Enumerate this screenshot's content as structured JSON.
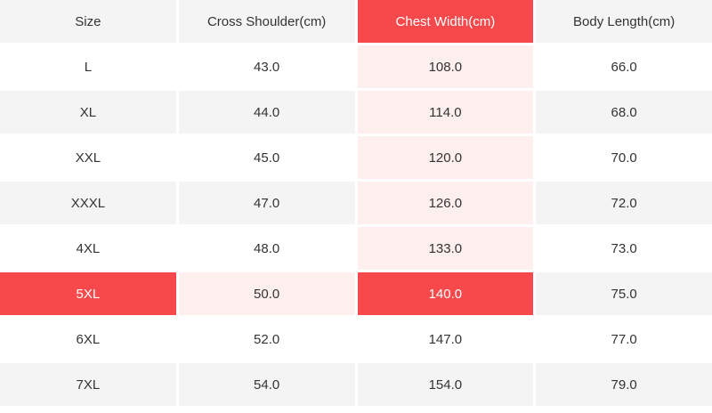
{
  "size_chart": {
    "columns": [
      "Size",
      "Cross Shoulder(cm)",
      "Chest Width(cm)",
      "Body Length(cm)"
    ],
    "highlighted_column": "Chest Width(cm)",
    "highlighted_row": "5XL",
    "rows": [
      [
        "L",
        "43.0",
        "108.0",
        "66.0"
      ],
      [
        "XL",
        "44.0",
        "114.0",
        "68.0"
      ],
      [
        "XXL",
        "45.0",
        "120.0",
        "70.0"
      ],
      [
        "XXXL",
        "47.0",
        "126.0",
        "72.0"
      ],
      [
        "4XL",
        "48.0",
        "133.0",
        "73.0"
      ],
      [
        "5XL",
        "50.0",
        "140.0",
        "75.0"
      ],
      [
        "6XL",
        "52.0",
        "147.0",
        "77.0"
      ],
      [
        "7XL",
        "54.0",
        "154.0",
        "79.0"
      ]
    ],
    "colors": {
      "highlight_red": "#f7494b",
      "highlight_pink": "#fcefee",
      "row_gray": "#f4f4f4",
      "row_white": "#ffffff",
      "text_dark": "#333333",
      "text_on_red": "#ffffff"
    }
  }
}
